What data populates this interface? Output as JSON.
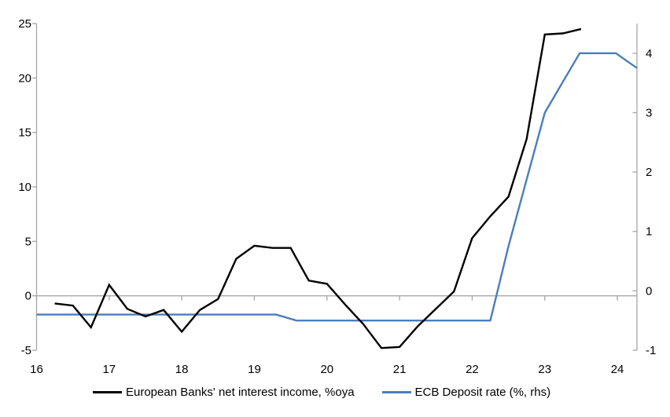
{
  "chart_data": {
    "type": "line",
    "title": "",
    "xlabel": "",
    "ylabel_left": "",
    "ylabel_right": "",
    "grid": "zero-line-only",
    "legend_position": "bottom",
    "background_color": "#ffffff",
    "axis_color": "#a6a6a6",
    "gridline_color": "#a6a6a6",
    "text_color": "#000000",
    "x_axis": {
      "min": 16,
      "max": 24.27,
      "tick_values": [
        16,
        17,
        18,
        19,
        20,
        21,
        22,
        23,
        24
      ],
      "tick_labels": [
        "16",
        "17",
        "18",
        "19",
        "20",
        "21",
        "22",
        "23",
        "24"
      ]
    },
    "left_axis": {
      "min": -5,
      "max": 25,
      "tick_values": [
        -5,
        0,
        5,
        10,
        15,
        20,
        25
      ],
      "tick_labels": [
        "-5",
        "0",
        "5",
        "10",
        "15",
        "20",
        "25"
      ]
    },
    "right_axis": {
      "min": -1,
      "max": 4.5,
      "tick_values": [
        -1,
        0,
        1,
        2,
        3,
        4
      ],
      "tick_labels": [
        "-1",
        "0",
        "1",
        "2",
        "3",
        "4"
      ]
    },
    "series": [
      {
        "name": "European Banks' net interest income, %oya",
        "axis": "left",
        "color": "#000000",
        "width": 2.4,
        "points": [
          [
            16.25,
            -0.7
          ],
          [
            16.5,
            -0.9
          ],
          [
            16.75,
            -2.9
          ],
          [
            17.0,
            1.0
          ],
          [
            17.25,
            -1.2
          ],
          [
            17.5,
            -1.9
          ],
          [
            17.75,
            -1.3
          ],
          [
            18.0,
            -3.3
          ],
          [
            18.25,
            -1.3
          ],
          [
            18.5,
            -0.3
          ],
          [
            18.75,
            3.4
          ],
          [
            19.0,
            4.6
          ],
          [
            19.25,
            4.4
          ],
          [
            19.5,
            4.4
          ],
          [
            19.75,
            1.4
          ],
          [
            20.0,
            1.1
          ],
          [
            20.25,
            -0.8
          ],
          [
            20.5,
            -2.6
          ],
          [
            20.75,
            -4.8
          ],
          [
            21.0,
            -4.7
          ],
          [
            21.25,
            -2.8
          ],
          [
            21.5,
            -1.2
          ],
          [
            21.75,
            0.4
          ],
          [
            22.0,
            5.3
          ],
          [
            22.25,
            7.3
          ],
          [
            22.5,
            9.1
          ],
          [
            22.75,
            14.4
          ],
          [
            23.0,
            24.0
          ],
          [
            23.25,
            24.1
          ],
          [
            23.5,
            24.5
          ]
        ]
      },
      {
        "name": "ECB Deposit rate (%, rhs)",
        "axis": "right",
        "color": "#4a7ebb",
        "width": 2.4,
        "points": [
          [
            16.0,
            -0.4
          ],
          [
            19.3,
            -0.4
          ],
          [
            19.58,
            -0.5
          ],
          [
            22.25,
            -0.5
          ],
          [
            22.5,
            0.75
          ],
          [
            23.0,
            3.0
          ],
          [
            23.48,
            4.0
          ],
          [
            23.98,
            4.0
          ],
          [
            24.27,
            3.75
          ]
        ]
      }
    ],
    "legend": [
      {
        "label": "European Banks' net interest income, %oya"
      },
      {
        "label": "ECB Deposit rate (%, rhs)"
      }
    ]
  }
}
